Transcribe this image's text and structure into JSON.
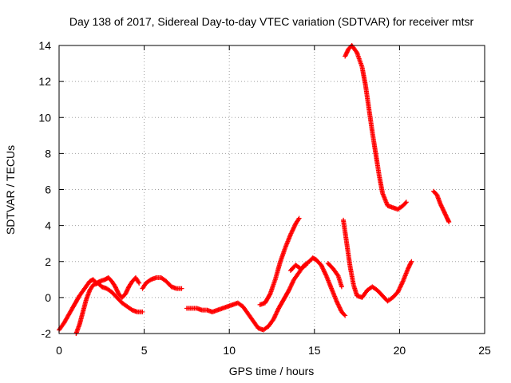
{
  "chart_data": {
    "type": "scatter",
    "title": "Day 138 of 2017, Sidereal Day-to-day VTEC variation (SDTVAR) for receiver mtsr",
    "xlabel": "GPS time / hours",
    "ylabel": "SDTVAR / TECUs",
    "xlim": [
      0,
      25
    ],
    "ylim": [
      -2,
      14
    ],
    "xticks": [
      0,
      5,
      10,
      15,
      20,
      25
    ],
    "yticks": [
      -2,
      0,
      2,
      4,
      6,
      8,
      10,
      12,
      14
    ],
    "grid": true,
    "marker": "plus",
    "color": "#ff0000",
    "segments": [
      [
        [
          0.0,
          -1.8
        ],
        [
          0.3,
          -1.4
        ],
        [
          0.6,
          -0.9
        ],
        [
          0.9,
          -0.4
        ],
        [
          1.2,
          0.1
        ],
        [
          1.5,
          0.5
        ],
        [
          1.8,
          0.9
        ],
        [
          2.0,
          1.0
        ],
        [
          2.2,
          0.8
        ],
        [
          2.4,
          0.9
        ],
        [
          2.7,
          1.0
        ],
        [
          2.9,
          1.1
        ],
        [
          3.1,
          0.9
        ],
        [
          3.3,
          0.6
        ],
        [
          3.5,
          0.2
        ],
        [
          3.7,
          0.0
        ],
        [
          3.9,
          0.2
        ],
        [
          4.1,
          0.6
        ],
        [
          4.3,
          0.9
        ],
        [
          4.5,
          1.1
        ],
        [
          4.7,
          0.8
        ]
      ],
      [
        [
          1.0,
          -2.0
        ],
        [
          1.2,
          -1.5
        ],
        [
          1.4,
          -0.8
        ],
        [
          1.6,
          -0.1
        ],
        [
          1.8,
          0.4
        ],
        [
          2.0,
          0.7
        ],
        [
          2.3,
          0.8
        ],
        [
          2.5,
          0.6
        ],
        [
          2.8,
          0.5
        ],
        [
          3.1,
          0.3
        ],
        [
          3.4,
          0.0
        ],
        [
          3.7,
          -0.3
        ],
        [
          4.0,
          -0.5
        ],
        [
          4.3,
          -0.7
        ],
        [
          4.6,
          -0.8
        ],
        [
          4.9,
          -0.8
        ]
      ],
      [
        [
          4.9,
          0.5
        ],
        [
          5.1,
          0.8
        ],
        [
          5.4,
          1.0
        ],
        [
          5.7,
          1.1
        ],
        [
          6.0,
          1.1
        ],
        [
          6.3,
          0.9
        ],
        [
          6.6,
          0.6
        ],
        [
          6.9,
          0.5
        ],
        [
          7.2,
          0.5
        ]
      ],
      [
        [
          7.5,
          -0.6
        ],
        [
          7.8,
          -0.6
        ],
        [
          8.1,
          -0.6
        ],
        [
          8.4,
          -0.7
        ],
        [
          8.7,
          -0.7
        ],
        [
          9.0,
          -0.8
        ],
        [
          9.3,
          -0.7
        ],
        [
          9.6,
          -0.6
        ],
        [
          9.9,
          -0.5
        ],
        [
          10.2,
          -0.4
        ],
        [
          10.5,
          -0.3
        ],
        [
          10.8,
          -0.5
        ],
        [
          11.1,
          -0.9
        ],
        [
          11.4,
          -1.3
        ],
        [
          11.7,
          -1.7
        ],
        [
          12.0,
          -1.8
        ],
        [
          12.3,
          -1.6
        ],
        [
          12.6,
          -1.2
        ],
        [
          12.9,
          -0.6
        ],
        [
          13.2,
          -0.1
        ],
        [
          13.5,
          0.4
        ],
        [
          13.8,
          1.0
        ],
        [
          14.1,
          1.4
        ],
        [
          14.4,
          1.8
        ],
        [
          14.7,
          2.0
        ],
        [
          14.9,
          2.2
        ],
        [
          15.1,
          2.1
        ],
        [
          15.4,
          1.8
        ],
        [
          15.7,
          1.2
        ],
        [
          16.0,
          0.5
        ],
        [
          16.3,
          -0.2
        ],
        [
          16.6,
          -0.8
        ],
        [
          16.8,
          -1.0
        ]
      ],
      [
        [
          11.8,
          -0.4
        ],
        [
          12.1,
          -0.3
        ],
        [
          12.4,
          0.2
        ],
        [
          12.7,
          1.0
        ],
        [
          13.0,
          2.0
        ],
        [
          13.3,
          2.8
        ],
        [
          13.6,
          3.5
        ],
        [
          13.9,
          4.1
        ],
        [
          14.1,
          4.4
        ]
      ],
      [
        [
          13.6,
          1.5
        ],
        [
          13.9,
          1.8
        ],
        [
          14.2,
          1.6
        ],
        [
          14.5,
          1.8
        ]
      ],
      [
        [
          15.8,
          1.9
        ],
        [
          16.1,
          1.6
        ],
        [
          16.4,
          1.2
        ],
        [
          16.6,
          0.6
        ]
      ],
      [
        [
          16.7,
          4.3
        ],
        [
          16.9,
          3.0
        ],
        [
          17.1,
          1.7
        ],
        [
          17.3,
          0.7
        ],
        [
          17.5,
          0.1
        ],
        [
          17.8,
          0.0
        ],
        [
          18.1,
          0.4
        ],
        [
          18.4,
          0.6
        ],
        [
          18.7,
          0.4
        ],
        [
          19.0,
          0.1
        ],
        [
          19.3,
          -0.2
        ],
        [
          19.6,
          0.0
        ],
        [
          19.9,
          0.3
        ],
        [
          20.2,
          0.9
        ],
        [
          20.5,
          1.6
        ],
        [
          20.7,
          2.0
        ]
      ],
      [
        [
          16.8,
          13.4
        ],
        [
          17.0,
          13.8
        ],
        [
          17.2,
          14.0
        ],
        [
          17.5,
          13.6
        ],
        [
          17.8,
          12.8
        ],
        [
          18.0,
          11.8
        ],
        [
          18.2,
          10.5
        ],
        [
          18.4,
          9.2
        ],
        [
          18.6,
          8.0
        ],
        [
          18.8,
          6.8
        ],
        [
          19.0,
          5.8
        ],
        [
          19.3,
          5.1
        ],
        [
          19.6,
          5.0
        ],
        [
          19.9,
          4.9
        ],
        [
          20.2,
          5.1
        ],
        [
          20.4,
          5.3
        ]
      ],
      [
        [
          22.0,
          5.9
        ],
        [
          22.2,
          5.7
        ],
        [
          22.4,
          5.2
        ],
        [
          22.6,
          4.8
        ],
        [
          22.8,
          4.4
        ],
        [
          22.9,
          4.2
        ]
      ]
    ]
  }
}
